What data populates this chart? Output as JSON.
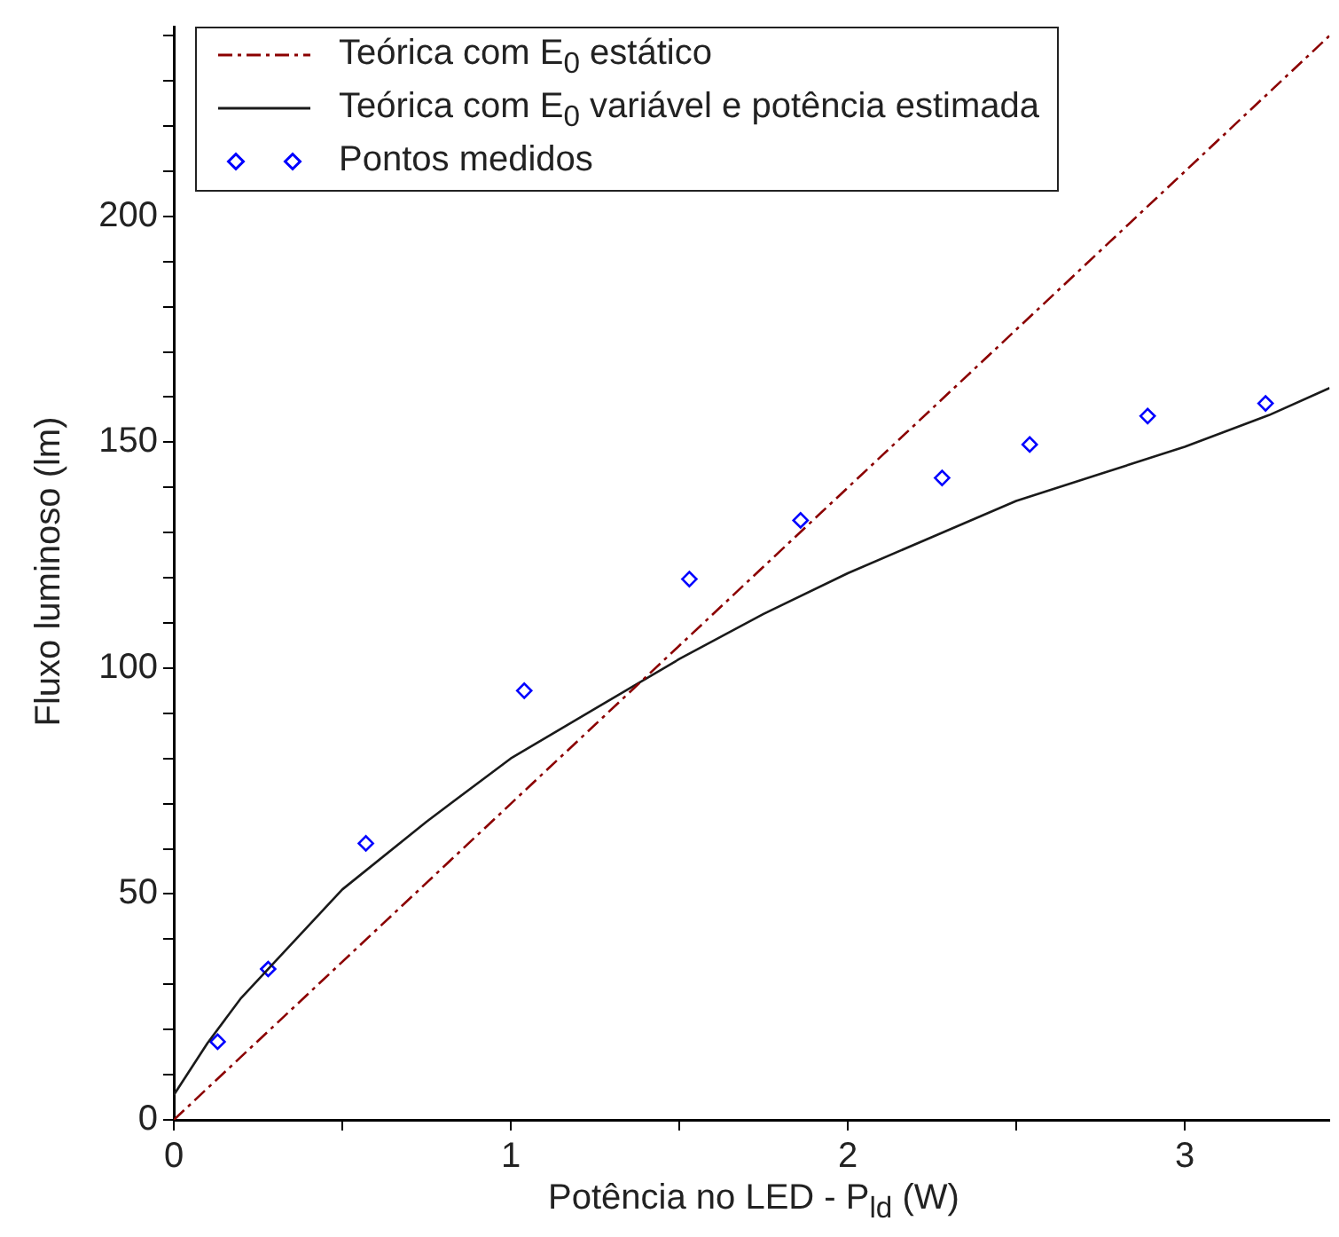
{
  "chart_data": {
    "type": "line",
    "xlabel": "Potência no LED - P$_{ld}$ (W)",
    "ylabel": "Fluxo luminoso (lm)",
    "legend": "top left",
    "grid": false,
    "xlim": [
      0,
      3.43
    ],
    "xticks": [
      0,
      {
        "value": 0.5,
        "label": null
      },
      1,
      {
        "value": 1.5,
        "label": null
      },
      2,
      {
        "value": 2.5,
        "label": null
      },
      3
    ],
    "ylim": [
      0,
      242
    ],
    "yticks": [
      0,
      {
        "value": 10,
        "label": null
      },
      {
        "value": 20,
        "label": null
      },
      {
        "value": 30,
        "label": null
      },
      {
        "value": 40,
        "label": null
      },
      50,
      {
        "value": 60,
        "label": null
      },
      {
        "value": 70,
        "label": null
      },
      {
        "value": 80,
        "label": null
      },
      {
        "value": 90,
        "label": null
      },
      100,
      {
        "value": 110,
        "label": null
      },
      {
        "value": 120,
        "label": null
      },
      {
        "value": 130,
        "label": null
      },
      {
        "value": 140,
        "label": null
      },
      150,
      {
        "value": 160,
        "label": null
      },
      {
        "value": 170,
        "label": null
      },
      {
        "value": 180,
        "label": null
      },
      {
        "value": 190,
        "label": null
      },
      200,
      {
        "value": 210,
        "label": null
      },
      {
        "value": 220,
        "label": null
      },
      {
        "value": 230,
        "label": null
      },
      {
        "value": 240,
        "label": null
      }
    ],
    "series": [
      {
        "name": "Teórica com E$_{0}$ estático",
        "type": "line",
        "color": "#8b0000",
        "line_style": "dashdot",
        "marker": "none",
        "x": [
          0,
          3.43
        ],
        "values": [
          0,
          240
        ]
      },
      {
        "name": "Teórica com E$_{0}$ variável e potência estimada",
        "type": "line",
        "color": "#1a1a1a",
        "line_style": "solid",
        "marker": "none",
        "x": [
          0,
          0.1,
          0.2,
          0.3,
          0.5,
          0.75,
          1,
          1.25,
          1.5,
          1.75,
          2,
          2.25,
          2.5,
          2.75,
          3,
          3.25,
          3.43
        ],
        "values": [
          5.5,
          17,
          27,
          35,
          51,
          66,
          80,
          91,
          102,
          112,
          121,
          129,
          137,
          143,
          149,
          156,
          162
        ]
      },
      {
        "name": "Pontos medidos",
        "type": "scatter",
        "color": "#0000ff",
        "marker": "diamond",
        "x": [
          0.13,
          0.28,
          0.57,
          1.04,
          1.53,
          1.86,
          2.28,
          2.54,
          2.89,
          3.24
        ],
        "values": [
          17.3,
          33.4,
          61.2,
          95,
          119.7,
          132.7,
          142.1,
          149.5,
          155.8,
          158.6
        ]
      }
    ]
  }
}
